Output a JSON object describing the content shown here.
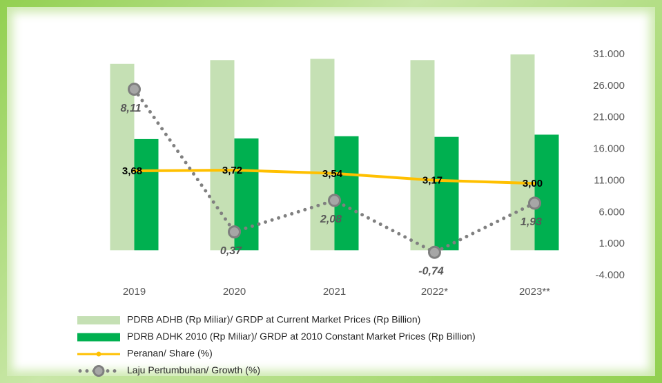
{
  "chart_data": {
    "type": "bar",
    "categories": [
      "2019",
      "2020",
      "2021",
      "2022*",
      "2023**"
    ],
    "ylim": [
      -2,
      10
    ],
    "y2lim": [
      -4000,
      31000
    ],
    "y2ticks": [
      {
        "value": 31000,
        "label": "31.000"
      },
      {
        "value": 26000,
        "label": "26.000"
      },
      {
        "value": 21000,
        "label": "21.000"
      },
      {
        "value": 16000,
        "label": "16.000"
      },
      {
        "value": 11000,
        "label": "11.000"
      },
      {
        "value": 6000,
        "label": "6.000"
      },
      {
        "value": 1000,
        "label": "1.000"
      },
      {
        "value": -4000,
        "label": "-4.000"
      }
    ],
    "series": [
      {
        "name": "PDRB ADHB (Rp Miliar)/ GRDP at Current Market Prices (Rp Billion)",
        "type": "bar",
        "axis": "y2",
        "color": "#c5e0b4",
        "values": [
          29500,
          30100,
          30300,
          30100,
          31000
        ]
      },
      {
        "name": "PDRB ADHK 2010 (Rp Miliar)/ GRDP at 2010 Constant Market Prices (Rp Billion)",
        "type": "bar",
        "axis": "y2",
        "color": "#00b050",
        "values": [
          17600,
          17700,
          18050,
          17950,
          18300
        ]
      },
      {
        "name": "Peranan/ Share (%)",
        "type": "line",
        "color": "#ffc000",
        "values": [
          3.68,
          3.72,
          3.54,
          3.17,
          3.0
        ],
        "value_labels": [
          "3,68",
          "3,72",
          "3,54",
          "3,17",
          "3,00"
        ]
      },
      {
        "name": "Laju Pertumbuhan/ Growth (%)",
        "type": "line",
        "line_style": "dotted",
        "color": "#808080",
        "values": [
          8.11,
          0.37,
          2.08,
          -0.74,
          1.93
        ],
        "value_labels": [
          "8,11",
          "0,37",
          "2,08",
          "-0,74",
          "1,93"
        ]
      }
    ]
  }
}
